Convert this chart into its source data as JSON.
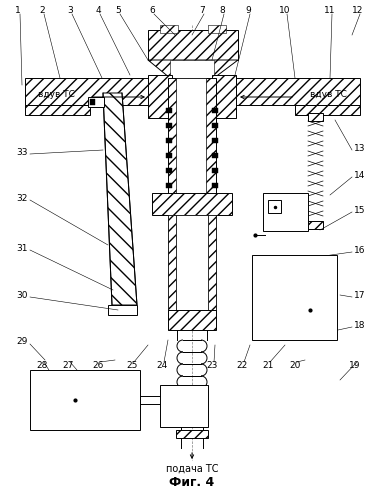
{
  "title": "Фиг. 4",
  "bottom_label": "подача ТС",
  "left_arrow_label": "вдув ТС",
  "right_arrow_label": "вдув ТС",
  "bg_color": "#ffffff",
  "line_color": "#000000",
  "fig_width": 3.8,
  "fig_height": 4.99,
  "dpi": 100,
  "numbers_top": [
    "1",
    "2",
    "3",
    "4",
    "5",
    "6",
    "7",
    "8",
    "9",
    "10",
    "11",
    "12"
  ],
  "numbers_left": [
    "33",
    "32",
    "31",
    "30",
    "29"
  ],
  "numbers_bottom_left": [
    "28",
    "27",
    "26",
    "25",
    "24"
  ],
  "numbers_bottom_right": [
    "23",
    "22",
    "21",
    "20",
    "19"
  ],
  "numbers_right": [
    "13",
    "14",
    "15",
    "16",
    "17",
    "18"
  ]
}
